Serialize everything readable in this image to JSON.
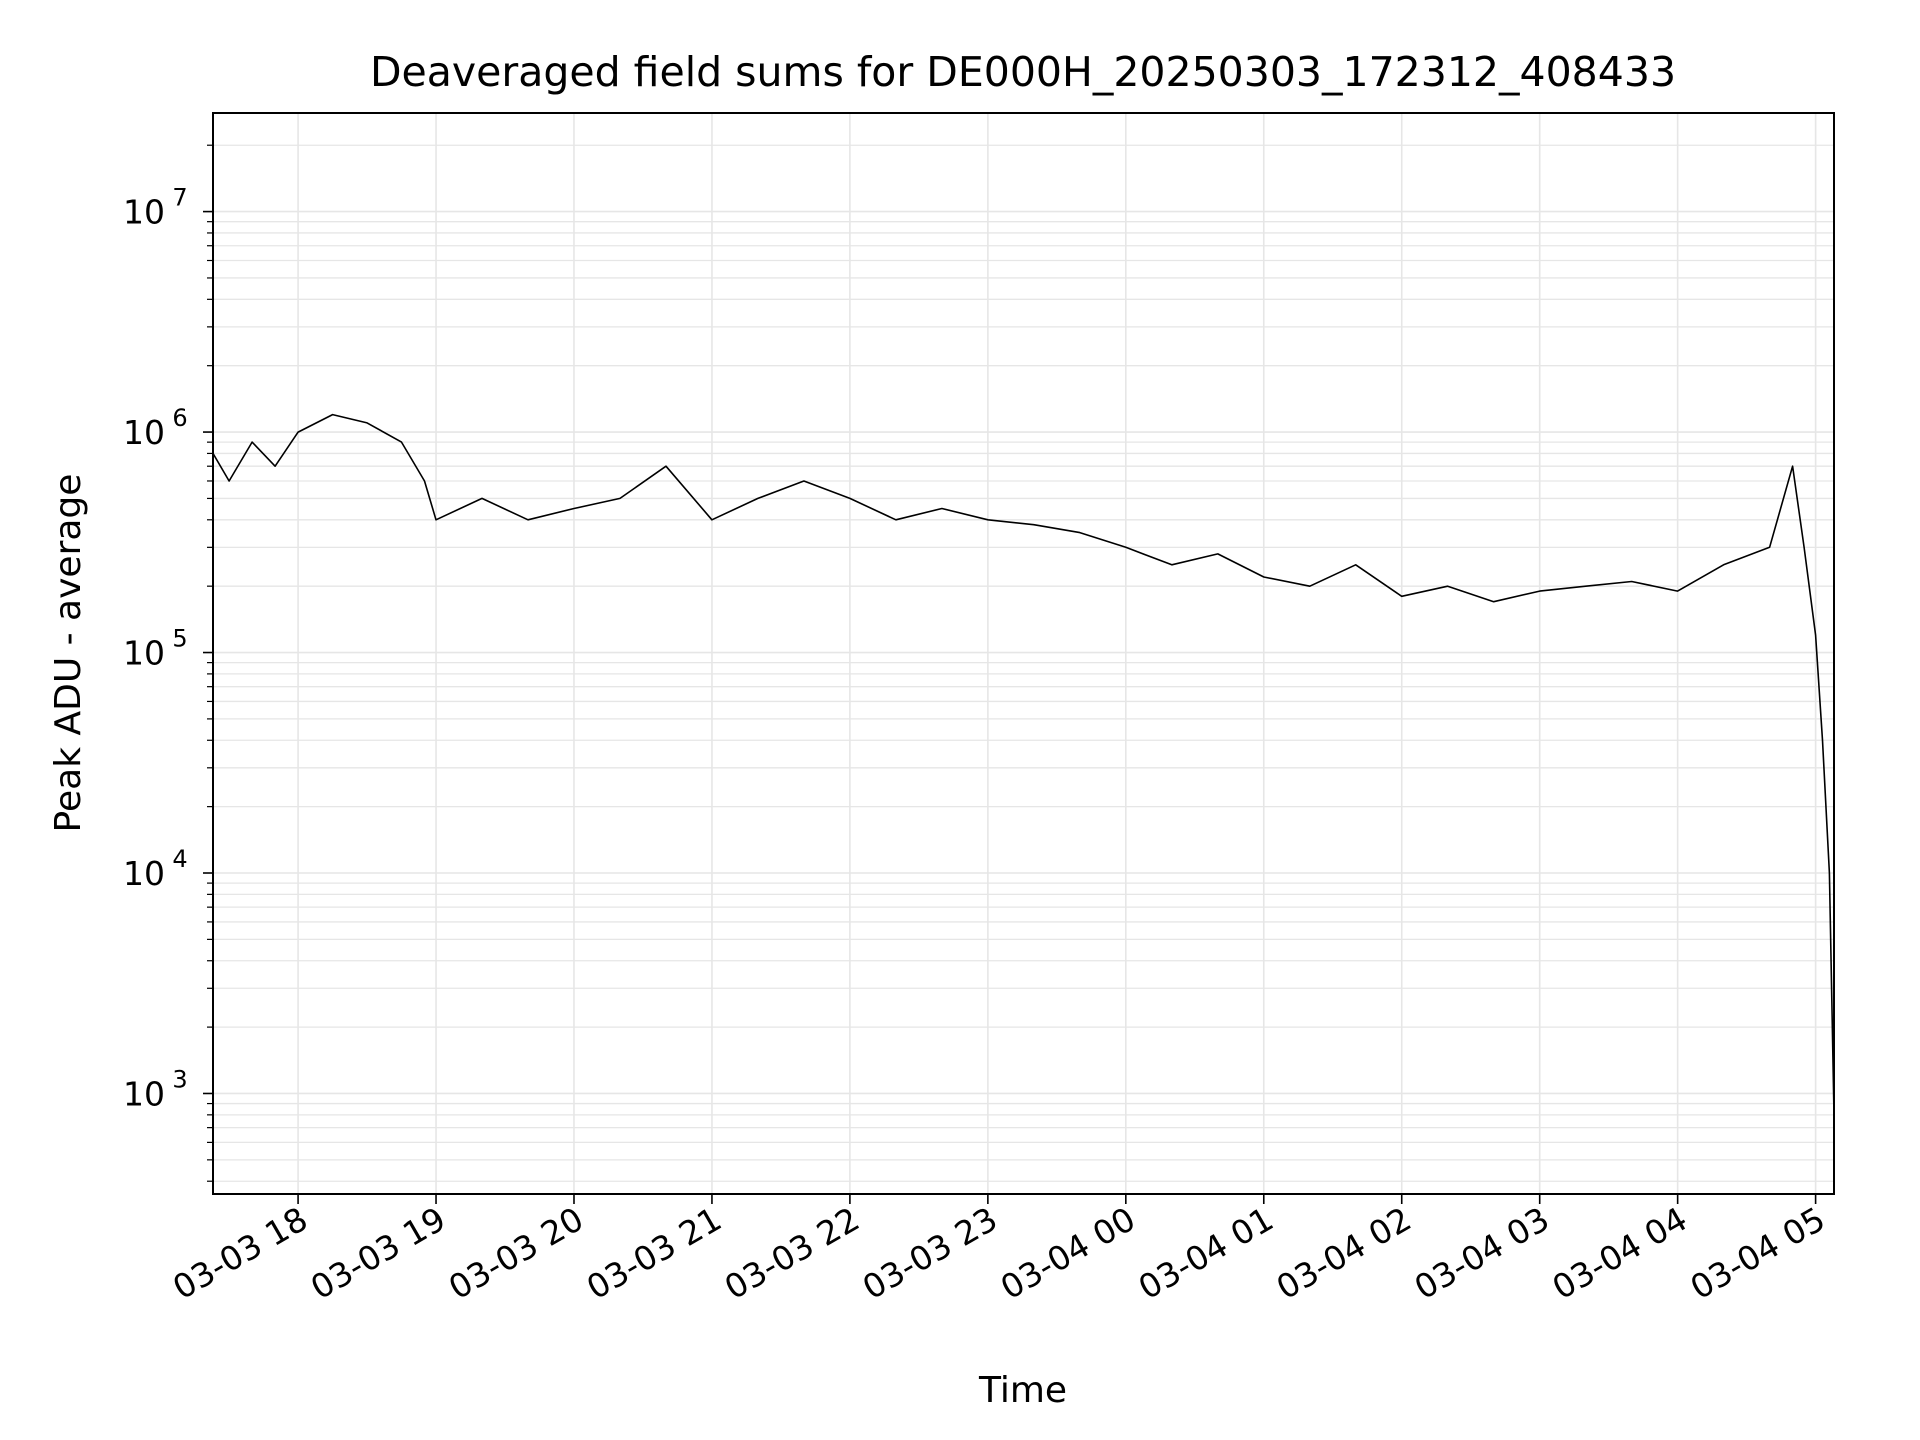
{
  "chart_data": {
    "type": "line",
    "title": "Deaveraged field sums for DE000H_20250303_172312_408433",
    "xlabel": "Time",
    "ylabel": "Peak ADU - average",
    "yscale": "log",
    "ylim": [
      350,
      28000000
    ],
    "xlim": [
      "2025-03-03 17:23",
      "2025-03-04 05:08"
    ],
    "x_ticks": [
      "2025-03-03 18:00",
      "2025-03-03 19:00",
      "2025-03-03 20:00",
      "2025-03-03 21:00",
      "2025-03-03 22:00",
      "2025-03-03 23:00",
      "2025-03-04 00:00",
      "2025-03-04 01:00",
      "2025-03-04 02:00",
      "2025-03-04 03:00",
      "2025-03-04 04:00",
      "2025-03-04 05:00"
    ],
    "x_tick_labels": [
      "03-03 18",
      "03-03 19",
      "03-03 20",
      "03-03 21",
      "03-03 22",
      "03-03 23",
      "03-04 00",
      "03-04 01",
      "03-04 02",
      "03-04 03",
      "03-04 04",
      "03-04 05"
    ],
    "y_ticks": [
      1000,
      10000,
      100000,
      1000000,
      10000000
    ],
    "y_tick_labels": [
      {
        "base": "10",
        "exp": "3"
      },
      {
        "base": "10",
        "exp": "4"
      },
      {
        "base": "10",
        "exp": "5"
      },
      {
        "base": "10",
        "exp": "6"
      },
      {
        "base": "10",
        "exp": "7"
      }
    ],
    "grid": true,
    "line_color": "#000000",
    "grid_color": "#e6e6e6",
    "series": [
      {
        "x": [
          "2025-03-03 17:23",
          "2025-03-03 17:30",
          "2025-03-03 17:40",
          "2025-03-03 17:50",
          "2025-03-03 18:00",
          "2025-03-03 18:15",
          "2025-03-03 18:30",
          "2025-03-03 18:45",
          "2025-03-03 18:55",
          "2025-03-03 19:00",
          "2025-03-03 19:20",
          "2025-03-03 19:40",
          "2025-03-03 20:00",
          "2025-03-03 20:20",
          "2025-03-03 20:40",
          "2025-03-03 21:00",
          "2025-03-03 21:20",
          "2025-03-03 21:40",
          "2025-03-03 22:00",
          "2025-03-03 22:20",
          "2025-03-03 22:40",
          "2025-03-03 23:00",
          "2025-03-03 23:20",
          "2025-03-03 23:40",
          "2025-03-04 00:00",
          "2025-03-04 00:20",
          "2025-03-04 00:40",
          "2025-03-04 01:00",
          "2025-03-04 01:20",
          "2025-03-04 01:40",
          "2025-03-04 02:00",
          "2025-03-04 02:20",
          "2025-03-04 02:40",
          "2025-03-04 03:00",
          "2025-03-04 03:20",
          "2025-03-04 03:40",
          "2025-03-04 04:00",
          "2025-03-04 04:20",
          "2025-03-04 04:40",
          "2025-03-04 04:50",
          "2025-03-04 04:55",
          "2025-03-04 05:00",
          "2025-03-04 05:03",
          "2025-03-04 05:06",
          "2025-03-04 05:08"
        ],
        "y": [
          800000,
          600000,
          900000,
          700000,
          1000000,
          1200000,
          1100000,
          900000,
          600000,
          400000,
          500000,
          400000,
          450000,
          500000,
          700000,
          400000,
          500000,
          600000,
          500000,
          400000,
          450000,
          400000,
          380000,
          350000,
          300000,
          250000,
          280000,
          220000,
          200000,
          250000,
          180000,
          200000,
          170000,
          190000,
          200000,
          210000,
          190000,
          250000,
          300000,
          700000,
          300000,
          120000,
          40000,
          10000,
          800
        ]
      }
    ]
  }
}
